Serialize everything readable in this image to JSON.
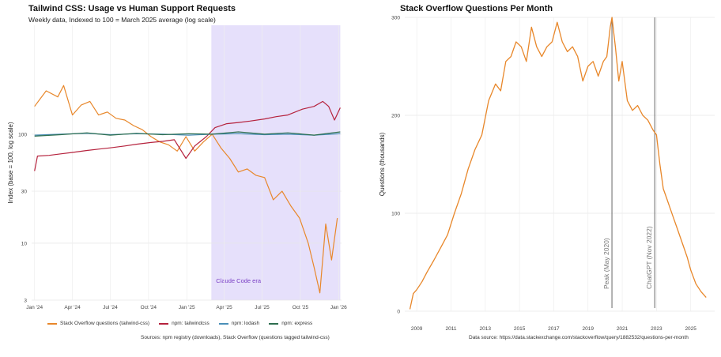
{
  "left": {
    "title": "Tailwind CSS: Usage vs Human Support Requests",
    "subtitle": "Weekly data, Indexed to 100 = March 2025 average (log scale)",
    "source": "Sources: npm registry (downloads), Stack Overflow (questions tagged tailwind-css)",
    "colors": {
      "shade": "#e6e0fb",
      "shade_label": "#7a3fc4"
    }
  },
  "right": {
    "title": "Stack Overflow Questions Per Month",
    "source": "Data source: https://data.stackexchange.com/stackoverflow/query/1882532/questions-per-month"
  },
  "chart_data": [
    {
      "type": "line",
      "title": "Tailwind CSS: Usage vs Human Support Requests",
      "subtitle": "Weekly data, Indexed to 100 = March 2025 average (log scale)",
      "xlabel": "",
      "ylabel": "Index (base = 100, log scale)",
      "y_scale": "log",
      "ylim": [
        3,
        1000
      ],
      "y_ticks": [
        3,
        10,
        30,
        100
      ],
      "x_tick_labels": [
        "Jan '24",
        "Apr '24",
        "Jul '24",
        "Oct '24",
        "Jan '25",
        "Apr '25",
        "Jul '25",
        "Oct '25",
        "Jan '26"
      ],
      "x_tick_dates": [
        "2024-01-01",
        "2024-04-01",
        "2024-07-01",
        "2024-10-01",
        "2025-01-01",
        "2025-04-01",
        "2025-07-01",
        "2025-10-01",
        "2026-01-01"
      ],
      "xlim": [
        "2023-12-25",
        "2026-01-08"
      ],
      "grid": true,
      "legend": "bottom",
      "shaded_region": {
        "start": "2025-03-01",
        "end": "2026-01-05",
        "label": "Claude Code era"
      },
      "series": [
        {
          "name": "Stack Overflow questions (tailwind-css)",
          "color": "#e8872a",
          "points": [
            [
              "2024-01-01",
              180
            ],
            [
              "2024-01-29",
              250
            ],
            [
              "2024-02-26",
              220
            ],
            [
              "2024-03-11",
              280
            ],
            [
              "2024-04-01",
              150
            ],
            [
              "2024-04-22",
              185
            ],
            [
              "2024-05-13",
              200
            ],
            [
              "2024-06-03",
              150
            ],
            [
              "2024-06-24",
              160
            ],
            [
              "2024-07-15",
              140
            ],
            [
              "2024-08-05",
              135
            ],
            [
              "2024-08-26",
              120
            ],
            [
              "2024-09-16",
              110
            ],
            [
              "2024-10-07",
              95
            ],
            [
              "2024-10-28",
              85
            ],
            [
              "2024-11-18",
              80
            ],
            [
              "2024-12-09",
              70
            ],
            [
              "2024-12-30",
              95
            ],
            [
              "2025-01-20",
              70
            ],
            [
              "2025-02-10",
              85
            ],
            [
              "2025-03-03",
              100
            ],
            [
              "2025-03-24",
              75
            ],
            [
              "2025-04-14",
              60
            ],
            [
              "2025-05-05",
              45
            ],
            [
              "2025-05-26",
              48
            ],
            [
              "2025-06-16",
              42
            ],
            [
              "2025-07-07",
              40
            ],
            [
              "2025-07-28",
              25
            ],
            [
              "2025-08-18",
              30
            ],
            [
              "2025-09-08",
              22
            ],
            [
              "2025-09-29",
              17
            ],
            [
              "2025-10-20",
              10
            ],
            [
              "2025-11-03",
              6
            ],
            [
              "2025-11-17",
              3.5
            ],
            [
              "2025-12-01",
              15
            ],
            [
              "2025-12-15",
              7
            ],
            [
              "2025-12-29",
              17
            ]
          ]
        },
        {
          "name": "npm: tailwindcss",
          "color": "#b5223d",
          "points": [
            [
              "2024-01-01",
              46
            ],
            [
              "2024-01-08",
              63
            ],
            [
              "2024-02-05",
              64
            ],
            [
              "2024-03-04",
              66
            ],
            [
              "2024-04-01",
              68
            ],
            [
              "2024-05-06",
              71
            ],
            [
              "2024-06-03",
              73
            ],
            [
              "2024-07-01",
              75
            ],
            [
              "2024-08-05",
              78
            ],
            [
              "2024-09-02",
              81
            ],
            [
              "2024-10-07",
              84
            ],
            [
              "2024-11-04",
              86
            ],
            [
              "2024-12-02",
              89
            ],
            [
              "2024-12-30",
              60
            ],
            [
              "2025-01-20",
              78
            ],
            [
              "2025-02-17",
              95
            ],
            [
              "2025-03-10",
              115
            ],
            [
              "2025-04-07",
              125
            ],
            [
              "2025-05-05",
              128
            ],
            [
              "2025-06-02",
              132
            ],
            [
              "2025-07-07",
              138
            ],
            [
              "2025-08-04",
              145
            ],
            [
              "2025-09-01",
              150
            ],
            [
              "2025-10-06",
              170
            ],
            [
              "2025-11-03",
              180
            ],
            [
              "2025-11-24",
              200
            ],
            [
              "2025-12-08",
              180
            ],
            [
              "2025-12-22",
              135
            ],
            [
              "2026-01-05",
              175
            ]
          ]
        },
        {
          "name": "npm: lodash",
          "color": "#4a8fb8",
          "points": [
            [
              "2024-01-01",
              98
            ],
            [
              "2024-03-04",
              100
            ],
            [
              "2024-05-06",
              102
            ],
            [
              "2024-07-01",
              99
            ],
            [
              "2024-09-02",
              101
            ],
            [
              "2024-11-04",
              100
            ],
            [
              "2025-01-06",
              98
            ],
            [
              "2025-03-03",
              100
            ],
            [
              "2025-05-05",
              101
            ],
            [
              "2025-07-07",
              99
            ],
            [
              "2025-09-01",
              100
            ],
            [
              "2025-11-03",
              98
            ],
            [
              "2026-01-05",
              101
            ]
          ]
        },
        {
          "name": "npm: express",
          "color": "#2d6e4f",
          "points": [
            [
              "2024-01-01",
              96
            ],
            [
              "2024-03-04",
              99
            ],
            [
              "2024-05-06",
              103
            ],
            [
              "2024-07-01",
              98
            ],
            [
              "2024-09-02",
              102
            ],
            [
              "2024-11-04",
              99
            ],
            [
              "2025-01-06",
              101
            ],
            [
              "2025-03-03",
              100
            ],
            [
              "2025-05-05",
              105
            ],
            [
              "2025-07-07",
              100
            ],
            [
              "2025-09-01",
              103
            ],
            [
              "2025-11-03",
              98
            ],
            [
              "2026-01-05",
              105
            ]
          ]
        }
      ]
    },
    {
      "type": "line",
      "title": "Stack Overflow Questions Per Month",
      "xlabel": "",
      "ylabel": "Questions (thousands)",
      "ylim": [
        0,
        300
      ],
      "y_ticks": [
        0,
        100,
        200,
        300
      ],
      "xlim": [
        2008.3,
        2026.4
      ],
      "x_ticks": [
        2009,
        2011,
        2013,
        2015,
        2017,
        2019,
        2021,
        2023,
        2025
      ],
      "grid": true,
      "annotations": [
        {
          "x": 2020.4,
          "label": "Peak (May 2020)"
        },
        {
          "x": 2022.9,
          "label": "ChatGPT (Nov 2022)"
        }
      ],
      "series": [
        {
          "color": "#e8872a",
          "x": [
            2008.6,
            2008.8,
            2009.0,
            2009.3,
            2009.6,
            2010.0,
            2010.4,
            2010.8,
            2011.2,
            2011.6,
            2012.0,
            2012.4,
            2012.8,
            2013.2,
            2013.6,
            2013.9,
            2014.2,
            2014.5,
            2014.8,
            2015.1,
            2015.4,
            2015.7,
            2016.0,
            2016.3,
            2016.6,
            2016.9,
            2017.2,
            2017.5,
            2017.8,
            2018.1,
            2018.4,
            2018.7,
            2019.0,
            2019.3,
            2019.6,
            2019.9,
            2020.1,
            2020.3,
            2020.4,
            2020.6,
            2020.8,
            2021.0,
            2021.3,
            2021.6,
            2021.9,
            2022.2,
            2022.5,
            2022.8,
            2023.0,
            2023.2,
            2023.4,
            2023.6,
            2023.8,
            2024.0,
            2024.2,
            2024.4,
            2024.6,
            2024.8,
            2025.0,
            2025.3,
            2025.6,
            2025.9
          ],
          "y": [
            2,
            18,
            22,
            30,
            40,
            52,
            65,
            78,
            100,
            120,
            145,
            165,
            180,
            215,
            232,
            225,
            255,
            260,
            275,
            270,
            255,
            290,
            270,
            260,
            270,
            275,
            295,
            275,
            265,
            270,
            260,
            235,
            250,
            255,
            240,
            255,
            260,
            290,
            300,
            270,
            235,
            255,
            215,
            205,
            210,
            200,
            195,
            185,
            180,
            150,
            125,
            115,
            105,
            95,
            85,
            75,
            65,
            55,
            42,
            28,
            20,
            14
          ]
        }
      ]
    }
  ]
}
